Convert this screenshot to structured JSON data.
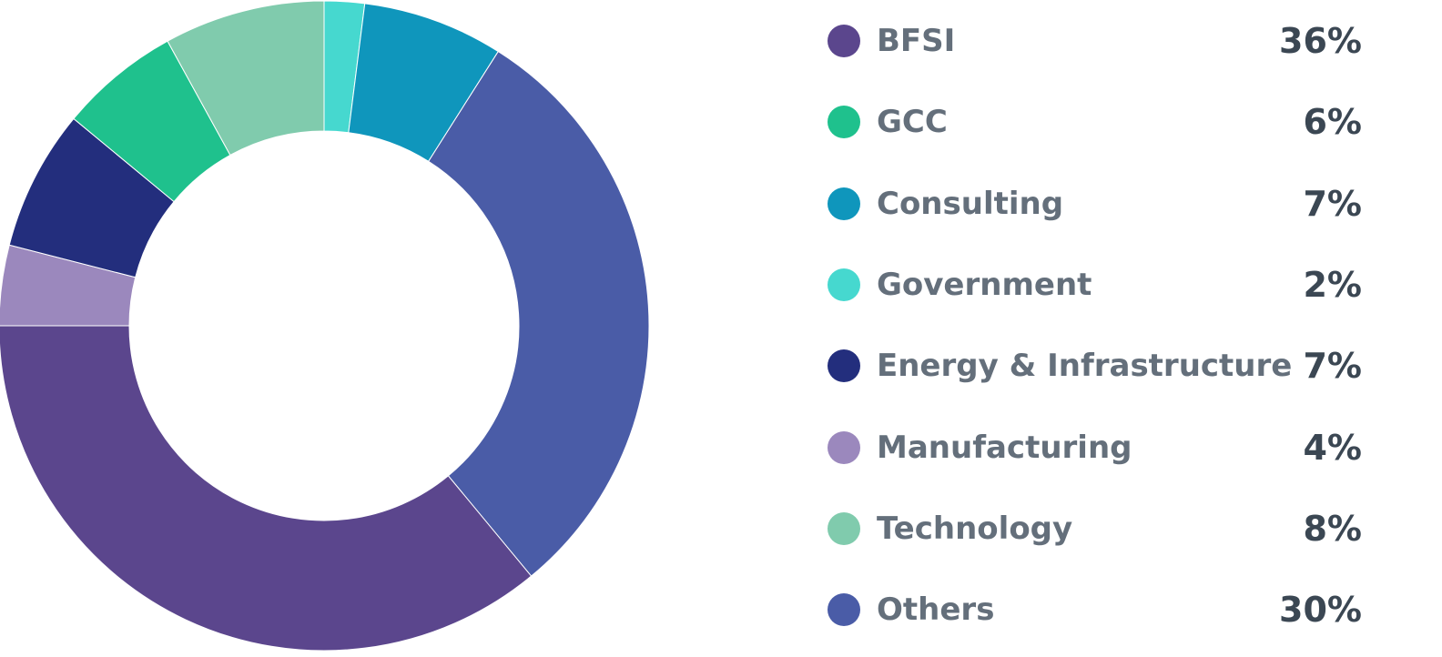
{
  "chart_data": {
    "type": "pie",
    "variant": "donut",
    "legend_position": "right",
    "slices": [
      {
        "label": "BFSI",
        "value": 36,
        "value_label": "36%",
        "color": "#5b468d"
      },
      {
        "label": "GCC",
        "value": 6,
        "value_label": "6%",
        "color": "#1fc18d"
      },
      {
        "label": "Consulting",
        "value": 7,
        "value_label": "7%",
        "color": "#0f96bc"
      },
      {
        "label": "Government",
        "value": 2,
        "value_label": "2%",
        "color": "#46d8cf"
      },
      {
        "label": "Energy & Infrastructure",
        "value": 7,
        "value_label": "7%",
        "color": "#232e7d"
      },
      {
        "label": "Manufacturing",
        "value": 4,
        "value_label": "4%",
        "color": "#9b88bd"
      },
      {
        "label": "Technology",
        "value": 8,
        "value_label": "8%",
        "color": "#80cbad"
      },
      {
        "label": "Others",
        "value": 30,
        "value_label": "30%",
        "color": "#4a5ca7"
      }
    ],
    "drawing_order": [
      "Government",
      "Consulting",
      "Others",
      "BFSI",
      "Manufacturing",
      "Energy & Infrastructure",
      "GCC",
      "Technology"
    ]
  }
}
